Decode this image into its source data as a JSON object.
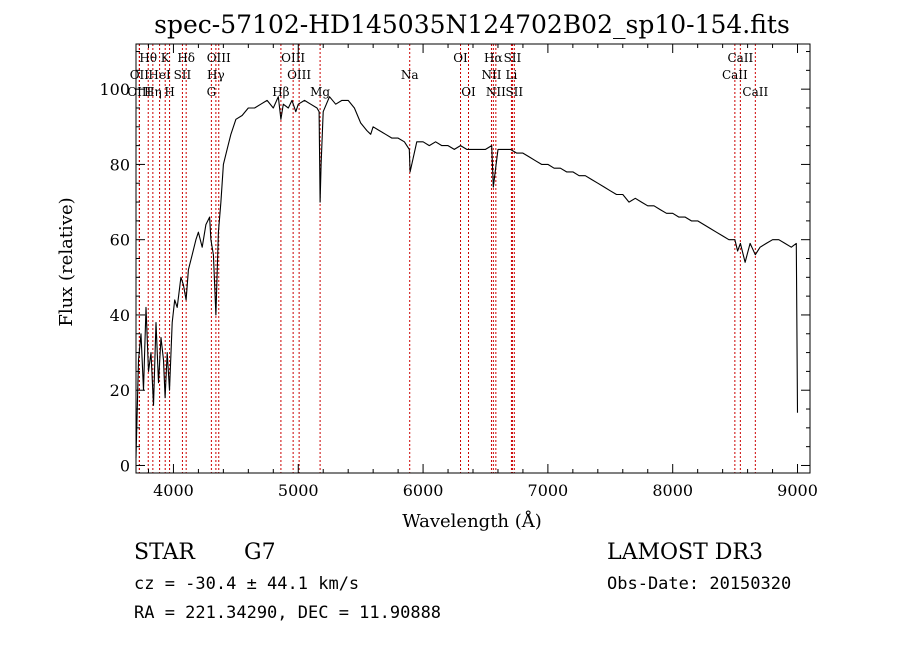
{
  "chart_data": {
    "type": "line",
    "title": "spec-57102-HD145035N124702B02_sp10-154.fits",
    "xlabel": "Wavelength (Å)",
    "ylabel": "Flux (relative)",
    "xlim": [
      3700,
      9100
    ],
    "ylim": [
      -2,
      112
    ],
    "xticks": [
      4000,
      5000,
      6000,
      7000,
      8000,
      9000
    ],
    "yticks": [
      0,
      20,
      40,
      60,
      80,
      100
    ],
    "series": [
      {
        "name": "flux",
        "x": [
          3700,
          3720,
          3740,
          3760,
          3780,
          3800,
          3820,
          3840,
          3860,
          3880,
          3900,
          3920,
          3933,
          3950,
          3968,
          3990,
          4010,
          4030,
          4060,
          4080,
          4101,
          4120,
          4150,
          4180,
          4200,
          4230,
          4260,
          4290,
          4300,
          4320,
          4340,
          4360,
          4380,
          4400,
          4430,
          4460,
          4500,
          4550,
          4600,
          4650,
          4700,
          4750,
          4800,
          4840,
          4861,
          4880,
          4920,
          4950,
          4980,
          5000,
          5050,
          5100,
          5150,
          5167,
          5175,
          5183,
          5200,
          5250,
          5300,
          5350,
          5400,
          5450,
          5500,
          5550,
          5580,
          5600,
          5650,
          5700,
          5750,
          5800,
          5850,
          5890,
          5896,
          5950,
          6000,
          6050,
          6100,
          6150,
          6200,
          6250,
          6300,
          6350,
          6400,
          6450,
          6500,
          6550,
          6563,
          6600,
          6650,
          6700,
          6750,
          6800,
          6850,
          6900,
          6950,
          7000,
          7050,
          7100,
          7150,
          7200,
          7250,
          7300,
          7350,
          7400,
          7450,
          7500,
          7550,
          7600,
          7650,
          7700,
          7750,
          7800,
          7850,
          7900,
          7950,
          8000,
          8050,
          8100,
          8150,
          8200,
          8250,
          8300,
          8350,
          8400,
          8450,
          8498,
          8520,
          8542,
          8580,
          8620,
          8662,
          8700,
          8750,
          8800,
          8850,
          8900,
          8950,
          8990,
          9000
        ],
        "y": [
          2,
          28,
          35,
          20,
          42,
          25,
          30,
          16,
          38,
          22,
          34,
          28,
          18,
          30,
          20,
          38,
          44,
          42,
          50,
          48,
          44,
          52,
          56,
          60,
          62,
          58,
          64,
          66,
          60,
          56,
          40,
          62,
          70,
          80,
          84,
          88,
          92,
          93,
          95,
          95,
          96,
          97,
          95,
          98,
          92,
          96,
          95,
          97,
          94,
          96,
          97,
          96,
          95,
          94,
          70,
          80,
          94,
          98,
          96,
          97,
          97,
          95,
          91,
          89,
          88,
          90,
          89,
          88,
          87,
          87,
          86,
          84,
          78,
          86,
          86,
          85,
          86,
          85,
          85,
          84,
          85,
          84,
          84,
          84,
          84,
          85,
          74,
          84,
          84,
          84,
          83,
          83,
          82,
          81,
          80,
          80,
          79,
          79,
          78,
          78,
          77,
          77,
          76,
          75,
          74,
          73,
          72,
          72,
          70,
          71,
          70,
          69,
          69,
          68,
          67,
          67,
          66,
          66,
          65,
          65,
          64,
          63,
          62,
          61,
          60,
          60,
          57,
          59,
          54,
          59,
          56,
          58,
          59,
          60,
          60,
          59,
          58,
          59,
          14
        ]
      }
    ],
    "line_ids": [
      {
        "label": "Hθ",
        "wavelength": 3798,
        "row": 0
      },
      {
        "label": "OII",
        "wavelength": 3727,
        "row": 1
      },
      {
        "label": "OIII",
        "wavelength": 3727,
        "row": 2
      },
      {
        "label": "Hη",
        "wavelength": 3835,
        "row": 2
      },
      {
        "label": "HeI",
        "wavelength": 3889,
        "row": 1
      },
      {
        "label": "K",
        "wavelength": 3934,
        "row": 0
      },
      {
        "label": "H",
        "wavelength": 3969,
        "row": 2
      },
      {
        "label": "SII",
        "wavelength": 4072,
        "row": 1
      },
      {
        "label": "Hδ",
        "wavelength": 4102,
        "row": 0
      },
      {
        "label": "OIII",
        "wavelength": 4363,
        "row": 0
      },
      {
        "label": "Hγ",
        "wavelength": 4340,
        "row": 1
      },
      {
        "label": "G",
        "wavelength": 4304,
        "row": 2
      },
      {
        "label": "Hβ",
        "wavelength": 4861,
        "row": 2
      },
      {
        "label": "OIII",
        "wavelength": 4959,
        "row": 0
      },
      {
        "label": "OIII",
        "wavelength": 5007,
        "row": 1
      },
      {
        "label": "Mg",
        "wavelength": 5175,
        "row": 2
      },
      {
        "label": "Na",
        "wavelength": 5893,
        "row": 1
      },
      {
        "label": "OI",
        "wavelength": 6300,
        "row": 0
      },
      {
        "label": "OI",
        "wavelength": 6364,
        "row": 2
      },
      {
        "label": "Hα",
        "wavelength": 6563,
        "row": 0
      },
      {
        "label": "NII",
        "wavelength": 6548,
        "row": 1
      },
      {
        "label": "NII",
        "wavelength": 6583,
        "row": 2
      },
      {
        "label": "SII",
        "wavelength": 6716,
        "row": 0
      },
      {
        "label": "Li",
        "wavelength": 6708,
        "row": 1
      },
      {
        "label": "SII",
        "wavelength": 6731,
        "row": 2
      },
      {
        "label": "CaII",
        "wavelength": 8542,
        "row": 0
      },
      {
        "label": "CaII",
        "wavelength": 8498,
        "row": 1
      },
      {
        "label": "CaII",
        "wavelength": 8662,
        "row": 2
      }
    ],
    "colors": {
      "spectrum": "#000000",
      "line_markers": "#cc0000",
      "axes": "#000000"
    }
  },
  "info": {
    "object_class": "STAR",
    "subclass": "G7",
    "survey": "LAMOST DR3",
    "redshift": "cz = -30.4 ± 44.1 km/s",
    "obs_date": "Obs-Date: 20150320",
    "coords": "RA = 221.34290, DEC =  11.90888"
  }
}
